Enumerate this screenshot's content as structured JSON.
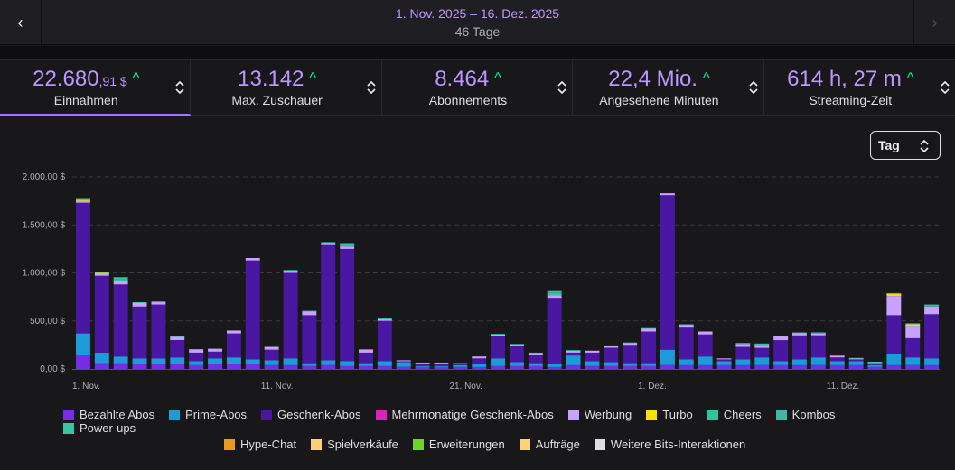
{
  "header": {
    "date_range": "1. Nov. 2025 – 16. Dez. 2025",
    "days": "46 Tage",
    "prev_icon": "‹",
    "next_icon": "›"
  },
  "metrics": [
    {
      "value_main": "22.680",
      "value_small": ",91 $",
      "label": "Einnahmen",
      "active": true
    },
    {
      "value_main": "13.142",
      "value_small": "",
      "label": "Max. Zuschauer",
      "active": false
    },
    {
      "value_main": "8.464",
      "value_small": "",
      "label": "Abonnements",
      "active": false
    },
    {
      "value_main": "22,4 Mio.",
      "value_small": "",
      "label": "Angesehene Minuten",
      "active": false
    },
    {
      "value_main": "614 h, 27 m",
      "value_small": "",
      "label": "Streaming-Zeit",
      "active": false
    }
  ],
  "trend_icon": "^",
  "interval_select": {
    "value": "Tag"
  },
  "colors": {
    "accent": "#a970ff",
    "value": "#bf94ff",
    "up": "#00f593",
    "Bezahlte Abos": "#772ce8",
    "Prime-Abos": "#1c9bd9",
    "Geschenk-Abos": "#4a17a2",
    "Mehrmonatige Geschenk-Abos": "#e01fbd",
    "Werbung": "#c9a1ff",
    "Turbo": "#f5e000",
    "Cheers": "#2fc4a1",
    "Kombos": "#3bb8a6",
    "Power-ups": "#35c5a0",
    "Hype-Chat": "#e89a1c",
    "Spielverkäufe": "#ffcf7a",
    "Erweiterungen": "#6dd42b",
    "Aufträge": "#ffd27a",
    "Weitere Bits-Interaktionen": "#dedee3"
  },
  "chart_data": {
    "type": "bar",
    "stacked": true,
    "title": "",
    "xlabel": "",
    "ylabel": "",
    "ylim": [
      0,
      2000
    ],
    "yticks": [
      "0,00 $",
      "500,00 $",
      "1.000,00 $",
      "1.500,00 $",
      "2.000,00 $"
    ],
    "ytick_values": [
      0,
      500,
      1000,
      1500,
      2000
    ],
    "x_tick_labels": [
      {
        "index": 0,
        "label": "1. Nov."
      },
      {
        "index": 10,
        "label": "11. Nov."
      },
      {
        "index": 20,
        "label": "21. Nov."
      },
      {
        "index": 30,
        "label": "1. Dez."
      },
      {
        "index": 40,
        "label": "11. Dez."
      }
    ],
    "categories": [
      "1.11",
      "2.11",
      "3.11",
      "4.11",
      "5.11",
      "6.11",
      "7.11",
      "8.11",
      "9.11",
      "10.11",
      "11.11",
      "12.11",
      "13.11",
      "14.11",
      "15.11",
      "16.11",
      "17.11",
      "18.11",
      "19.11",
      "20.11",
      "21.11",
      "22.11",
      "23.11",
      "24.11",
      "25.11",
      "26.11",
      "27.11",
      "28.11",
      "29.11",
      "30.11",
      "1.12",
      "2.12",
      "3.12",
      "4.12",
      "5.12",
      "6.12",
      "7.12",
      "8.12",
      "9.12",
      "10.12",
      "11.12",
      "12.12",
      "13.12",
      "14.12",
      "15.12",
      "16.12"
    ],
    "series": [
      {
        "name": "Bezahlte Abos",
        "values": [
          150,
          60,
          60,
          50,
          50,
          50,
          40,
          50,
          50,
          50,
          40,
          40,
          30,
          40,
          30,
          30,
          30,
          20,
          20,
          20,
          20,
          20,
          30,
          30,
          30,
          20,
          40,
          30,
          30,
          30,
          30,
          40,
          40,
          40,
          40,
          40,
          40,
          40,
          40,
          40,
          40,
          40,
          20,
          40,
          40,
          40
        ]
      },
      {
        "name": "Prime-Abos",
        "values": [
          220,
          110,
          70,
          60,
          60,
          70,
          40,
          60,
          70,
          50,
          50,
          70,
          30,
          50,
          50,
          30,
          50,
          50,
          10,
          10,
          20,
          30,
          80,
          40,
          30,
          30,
          100,
          50,
          40,
          30,
          30,
          160,
          60,
          90,
          40,
          60,
          80,
          40,
          60,
          80,
          40,
          40,
          20,
          120,
          80,
          70
        ]
      },
      {
        "name": "Geschenk-Abos",
        "values": [
          1360,
          800,
          750,
          540,
          560,
          180,
          90,
          70,
          250,
          1030,
          110,
          890,
          500,
          1200,
          1170,
          110,
          420,
          10,
          20,
          20,
          10,
          60,
          230,
          170,
          90,
          690,
          30,
          90,
          150,
          190,
          330,
          1610,
          330,
          230,
          20,
          130,
          100,
          220,
          250,
          230,
          40,
          20,
          20,
          400,
          200,
          460
        ]
      },
      {
        "name": "Mehrmonatige Geschenk-Abos",
        "values": [
          0,
          0,
          0,
          0,
          0,
          0,
          0,
          0,
          0,
          0,
          0,
          0,
          0,
          0,
          0,
          0,
          0,
          0,
          0,
          0,
          0,
          0,
          0,
          0,
          0,
          0,
          0,
          0,
          0,
          0,
          0,
          0,
          0,
          0,
          0,
          0,
          0,
          0,
          0,
          0,
          0,
          0,
          0,
          0,
          0,
          0
        ]
      },
      {
        "name": "Werbung",
        "values": [
          20,
          25,
          35,
          40,
          30,
          35,
          35,
          30,
          30,
          25,
          30,
          25,
          40,
          25,
          25,
          30,
          20,
          10,
          15,
          15,
          10,
          20,
          20,
          15,
          15,
          25,
          20,
          20,
          20,
          20,
          30,
          20,
          30,
          30,
          10,
          30,
          30,
          40,
          25,
          20,
          15,
          10,
          10,
          200,
          130,
          80
        ]
      },
      {
        "name": "Turbo",
        "values": [
          10,
          5,
          0,
          0,
          0,
          0,
          0,
          0,
          0,
          0,
          0,
          0,
          0,
          0,
          0,
          0,
          0,
          0,
          0,
          0,
          0,
          0,
          0,
          0,
          0,
          0,
          0,
          0,
          0,
          0,
          0,
          0,
          0,
          0,
          0,
          0,
          0,
          0,
          0,
          0,
          0,
          0,
          0,
          20,
          15,
          0
        ]
      },
      {
        "name": "Cheers",
        "values": [
          10,
          10,
          20,
          5,
          0,
          5,
          0,
          0,
          0,
          0,
          0,
          5,
          5,
          5,
          10,
          5,
          5,
          0,
          0,
          0,
          0,
          0,
          5,
          5,
          5,
          25,
          5,
          0,
          5,
          5,
          5,
          0,
          5,
          0,
          0,
          10,
          15,
          5,
          5,
          10,
          5,
          5,
          5,
          10,
          10,
          20
        ]
      },
      {
        "name": "Kombos",
        "values": [
          0,
          0,
          0,
          0,
          0,
          0,
          0,
          0,
          0,
          0,
          0,
          0,
          0,
          0,
          0,
          0,
          0,
          0,
          0,
          0,
          0,
          0,
          0,
          0,
          0,
          0,
          0,
          0,
          0,
          0,
          0,
          0,
          0,
          0,
          0,
          0,
          0,
          0,
          0,
          0,
          0,
          0,
          0,
          0,
          0,
          0
        ]
      },
      {
        "name": "Power-ups",
        "values": [
          0,
          0,
          20,
          0,
          0,
          0,
          0,
          0,
          0,
          0,
          0,
          0,
          0,
          0,
          25,
          0,
          0,
          0,
          0,
          0,
          0,
          0,
          0,
          0,
          0,
          20,
          0,
          0,
          0,
          0,
          0,
          0,
          0,
          0,
          0,
          0,
          0,
          0,
          0,
          0,
          0,
          0,
          0,
          0,
          0,
          0
        ]
      },
      {
        "name": "Hype-Chat",
        "values": [
          0,
          0,
          0,
          0,
          0,
          0,
          0,
          0,
          0,
          0,
          0,
          0,
          0,
          0,
          0,
          0,
          0,
          0,
          0,
          0,
          0,
          0,
          0,
          0,
          0,
          0,
          0,
          0,
          0,
          0,
          0,
          0,
          0,
          0,
          0,
          0,
          0,
          0,
          0,
          0,
          0,
          0,
          0,
          0,
          0,
          0
        ]
      },
      {
        "name": "Spielverkäufe",
        "values": [
          0,
          0,
          0,
          0,
          0,
          0,
          0,
          0,
          0,
          0,
          0,
          0,
          0,
          0,
          0,
          0,
          0,
          0,
          0,
          0,
          0,
          0,
          0,
          0,
          0,
          0,
          0,
          0,
          0,
          0,
          0,
          0,
          0,
          0,
          0,
          0,
          0,
          0,
          0,
          0,
          0,
          0,
          0,
          0,
          0,
          0
        ]
      },
      {
        "name": "Erweiterungen",
        "values": [
          0,
          0,
          0,
          0,
          0,
          0,
          0,
          0,
          0,
          0,
          0,
          0,
          0,
          0,
          0,
          0,
          0,
          0,
          0,
          0,
          0,
          0,
          0,
          0,
          0,
          0,
          0,
          0,
          0,
          0,
          0,
          0,
          0,
          0,
          0,
          0,
          0,
          0,
          0,
          0,
          0,
          0,
          0,
          0,
          0,
          0
        ]
      },
      {
        "name": "Aufträge",
        "values": [
          0,
          0,
          0,
          0,
          0,
          0,
          0,
          0,
          0,
          0,
          0,
          0,
          0,
          0,
          0,
          0,
          0,
          0,
          0,
          0,
          0,
          0,
          0,
          0,
          0,
          0,
          0,
          0,
          0,
          0,
          0,
          0,
          0,
          0,
          0,
          0,
          0,
          0,
          0,
          0,
          0,
          0,
          0,
          0,
          0,
          0
        ]
      },
      {
        "name": "Weitere Bits-Interaktionen",
        "values": [
          0,
          0,
          0,
          0,
          0,
          0,
          0,
          0,
          0,
          0,
          0,
          0,
          0,
          0,
          0,
          0,
          0,
          0,
          0,
          0,
          0,
          0,
          0,
          0,
          0,
          0,
          0,
          0,
          0,
          0,
          0,
          0,
          0,
          0,
          0,
          0,
          0,
          0,
          0,
          0,
          0,
          0,
          0,
          0,
          0,
          0
        ]
      }
    ],
    "legend_rows": [
      [
        "Bezahlte Abos",
        "Prime-Abos",
        "Geschenk-Abos",
        "Mehrmonatige Geschenk-Abos",
        "Werbung",
        "Turbo",
        "Cheers",
        "Kombos",
        "Power-ups"
      ],
      [
        "Hype-Chat",
        "Spielverkäufe",
        "Erweiterungen",
        "Aufträge",
        "Weitere Bits-Interaktionen"
      ]
    ]
  }
}
